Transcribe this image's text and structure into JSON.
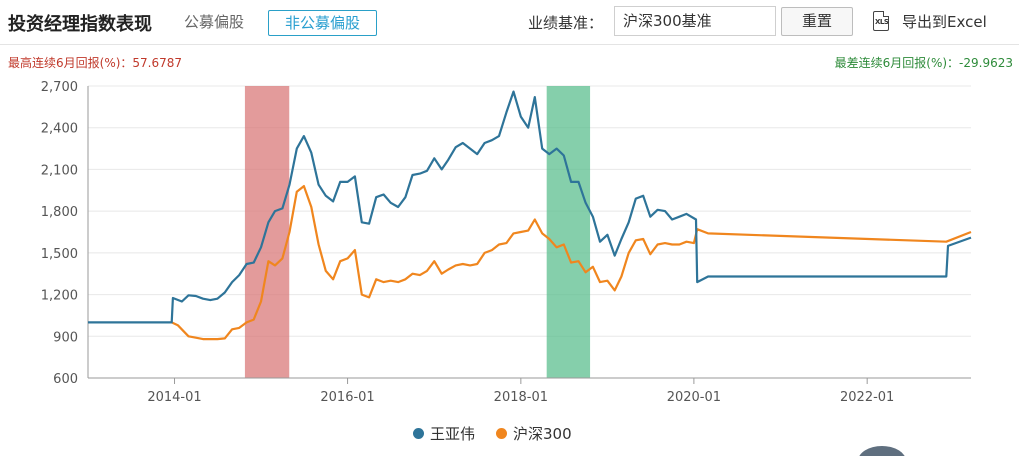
{
  "header": {
    "title": "投资经理指数表现",
    "tab_public": "公募偏股",
    "tab_nonpublic": "非公募偏股",
    "benchmark_label": "业绩基准：",
    "benchmark_value": "沪深300基准",
    "reset_label": "重置",
    "export_icon_text": "XLS",
    "export_label": "导出到Excel"
  },
  "stats": {
    "max_return": "最高连续6月回报(%)：57.6787",
    "min_return": "最差连续6月回报(%)：-29.9623"
  },
  "colors": {
    "manager": "#2e7499",
    "index": "#f0861e",
    "max_band": "#d97a7a",
    "min_band": "#5cbf8f"
  },
  "chart_data": {
    "type": "line",
    "x_axis": {
      "type": "date",
      "range": [
        "2013-01-01",
        "2023-03-15"
      ],
      "ticks": [
        "2014-01-01",
        "2016-01-01",
        "2018-01-01",
        "2020-01-01",
        "2022-01-01"
      ],
      "tick_labels": [
        "2014-01",
        "2016-01",
        "2018-01",
        "2020-01",
        "2022-01"
      ]
    },
    "y_axis": {
      "range": [
        600,
        2700
      ],
      "ticks": [
        600,
        900,
        1200,
        1500,
        1800,
        2100,
        2400,
        2700
      ],
      "tick_labels": [
        "600",
        "900",
        "1,200",
        "1,500",
        "1,800",
        "2,100",
        "2,400",
        "2,700"
      ],
      "grid": true
    },
    "bands": [
      {
        "kind": "max",
        "start": "2014-10-25",
        "end": "2015-04-30"
      },
      {
        "kind": "min",
        "start": "2018-04-20",
        "end": "2018-10-20"
      }
    ],
    "legend": {
      "placement": "bottom-center"
    },
    "series": [
      {
        "name": "王亚伟",
        "points": [
          [
            "2013-01-01",
            1000
          ],
          [
            "2013-12-20",
            1000
          ],
          [
            "2013-12-25",
            1175
          ],
          [
            "2014-02-01",
            1150
          ],
          [
            "2014-03-01",
            1195
          ],
          [
            "2014-04-01",
            1190
          ],
          [
            "2014-05-01",
            1170
          ],
          [
            "2014-06-01",
            1160
          ],
          [
            "2014-07-01",
            1170
          ],
          [
            "2014-08-01",
            1215
          ],
          [
            "2014-09-01",
            1290
          ],
          [
            "2014-10-01",
            1340
          ],
          [
            "2014-11-01",
            1420
          ],
          [
            "2014-12-01",
            1430
          ],
          [
            "2015-01-01",
            1540
          ],
          [
            "2015-02-01",
            1720
          ],
          [
            "2015-03-01",
            1800
          ],
          [
            "2015-04-01",
            1820
          ],
          [
            "2015-05-01",
            1990
          ],
          [
            "2015-06-01",
            2250
          ],
          [
            "2015-07-01",
            2340
          ],
          [
            "2015-08-01",
            2220
          ],
          [
            "2015-09-01",
            1990
          ],
          [
            "2015-10-01",
            1910
          ],
          [
            "2015-11-01",
            1870
          ],
          [
            "2015-12-01",
            2010
          ],
          [
            "2016-01-01",
            2010
          ],
          [
            "2016-02-01",
            2050
          ],
          [
            "2016-03-01",
            1720
          ],
          [
            "2016-04-01",
            1710
          ],
          [
            "2016-05-01",
            1900
          ],
          [
            "2016-06-01",
            1920
          ],
          [
            "2016-07-01",
            1860
          ],
          [
            "2016-08-01",
            1830
          ],
          [
            "2016-09-01",
            1900
          ],
          [
            "2016-10-01",
            2060
          ],
          [
            "2016-11-01",
            2070
          ],
          [
            "2016-12-01",
            2090
          ],
          [
            "2017-01-01",
            2180
          ],
          [
            "2017-02-01",
            2100
          ],
          [
            "2017-03-01",
            2170
          ],
          [
            "2017-04-01",
            2260
          ],
          [
            "2017-05-01",
            2290
          ],
          [
            "2017-06-01",
            2250
          ],
          [
            "2017-07-01",
            2210
          ],
          [
            "2017-08-01",
            2290
          ],
          [
            "2017-09-01",
            2310
          ],
          [
            "2017-10-01",
            2340
          ],
          [
            "2017-11-01",
            2510
          ],
          [
            "2017-12-01",
            2660
          ],
          [
            "2018-01-01",
            2480
          ],
          [
            "2018-02-01",
            2400
          ],
          [
            "2018-03-01",
            2620
          ],
          [
            "2018-04-01",
            2250
          ],
          [
            "2018-05-01",
            2210
          ],
          [
            "2018-06-01",
            2250
          ],
          [
            "2018-07-01",
            2200
          ],
          [
            "2018-08-01",
            2010
          ],
          [
            "2018-09-01",
            2010
          ],
          [
            "2018-10-01",
            1860
          ],
          [
            "2018-11-01",
            1760
          ],
          [
            "2018-12-01",
            1580
          ],
          [
            "2019-01-01",
            1630
          ],
          [
            "2019-02-01",
            1480
          ],
          [
            "2019-03-01",
            1600
          ],
          [
            "2019-04-01",
            1720
          ],
          [
            "2019-05-01",
            1890
          ],
          [
            "2019-06-01",
            1910
          ],
          [
            "2019-07-01",
            1760
          ],
          [
            "2019-08-01",
            1810
          ],
          [
            "2019-09-01",
            1800
          ],
          [
            "2019-10-01",
            1740
          ],
          [
            "2019-11-01",
            1760
          ],
          [
            "2019-12-01",
            1780
          ],
          [
            "2020-01-10",
            1740
          ],
          [
            "2020-01-15",
            1290
          ],
          [
            "2020-03-01",
            1330
          ],
          [
            "2022-12-01",
            1330
          ],
          [
            "2022-12-08",
            1550
          ],
          [
            "2023-03-15",
            1610
          ]
        ]
      },
      {
        "name": "沪深300",
        "points": [
          [
            "2013-12-20",
            1000
          ],
          [
            "2014-01-15",
            980
          ],
          [
            "2014-03-01",
            900
          ],
          [
            "2014-04-01",
            890
          ],
          [
            "2014-05-01",
            880
          ],
          [
            "2014-06-01",
            880
          ],
          [
            "2014-07-01",
            880
          ],
          [
            "2014-08-01",
            885
          ],
          [
            "2014-09-01",
            950
          ],
          [
            "2014-10-01",
            960
          ],
          [
            "2014-11-01",
            1000
          ],
          [
            "2014-12-01",
            1020
          ],
          [
            "2015-01-01",
            1150
          ],
          [
            "2015-02-01",
            1440
          ],
          [
            "2015-03-01",
            1410
          ],
          [
            "2015-04-01",
            1460
          ],
          [
            "2015-05-01",
            1650
          ],
          [
            "2015-06-01",
            1940
          ],
          [
            "2015-07-01",
            1980
          ],
          [
            "2015-08-01",
            1830
          ],
          [
            "2015-09-01",
            1560
          ],
          [
            "2015-10-01",
            1370
          ],
          [
            "2015-11-01",
            1310
          ],
          [
            "2015-12-01",
            1440
          ],
          [
            "2016-01-01",
            1460
          ],
          [
            "2016-02-01",
            1520
          ],
          [
            "2016-03-01",
            1200
          ],
          [
            "2016-04-01",
            1180
          ],
          [
            "2016-05-01",
            1310
          ],
          [
            "2016-06-01",
            1290
          ],
          [
            "2016-07-01",
            1300
          ],
          [
            "2016-08-01",
            1290
          ],
          [
            "2016-09-01",
            1310
          ],
          [
            "2016-10-01",
            1350
          ],
          [
            "2016-11-01",
            1340
          ],
          [
            "2016-12-01",
            1370
          ],
          [
            "2017-01-01",
            1440
          ],
          [
            "2017-02-01",
            1350
          ],
          [
            "2017-03-01",
            1380
          ],
          [
            "2017-04-01",
            1410
          ],
          [
            "2017-05-01",
            1420
          ],
          [
            "2017-06-01",
            1410
          ],
          [
            "2017-07-01",
            1420
          ],
          [
            "2017-08-01",
            1500
          ],
          [
            "2017-09-01",
            1520
          ],
          [
            "2017-10-01",
            1560
          ],
          [
            "2017-11-01",
            1570
          ],
          [
            "2017-12-01",
            1640
          ],
          [
            "2018-01-01",
            1650
          ],
          [
            "2018-02-01",
            1660
          ],
          [
            "2018-03-01",
            1740
          ],
          [
            "2018-04-01",
            1640
          ],
          [
            "2018-05-01",
            1600
          ],
          [
            "2018-06-01",
            1540
          ],
          [
            "2018-07-01",
            1560
          ],
          [
            "2018-08-01",
            1430
          ],
          [
            "2018-09-01",
            1440
          ],
          [
            "2018-10-01",
            1360
          ],
          [
            "2018-11-01",
            1400
          ],
          [
            "2018-12-01",
            1290
          ],
          [
            "2019-01-01",
            1300
          ],
          [
            "2019-02-01",
            1230
          ],
          [
            "2019-03-01",
            1330
          ],
          [
            "2019-04-01",
            1500
          ],
          [
            "2019-05-01",
            1590
          ],
          [
            "2019-06-01",
            1600
          ],
          [
            "2019-07-01",
            1490
          ],
          [
            "2019-08-01",
            1560
          ],
          [
            "2019-09-01",
            1570
          ],
          [
            "2019-10-01",
            1560
          ],
          [
            "2019-11-01",
            1560
          ],
          [
            "2019-12-01",
            1580
          ],
          [
            "2020-01-01",
            1570
          ],
          [
            "2020-01-15",
            1670
          ],
          [
            "2020-03-01",
            1640
          ],
          [
            "2022-12-01",
            1580
          ],
          [
            "2023-03-15",
            1650
          ]
        ]
      }
    ]
  }
}
